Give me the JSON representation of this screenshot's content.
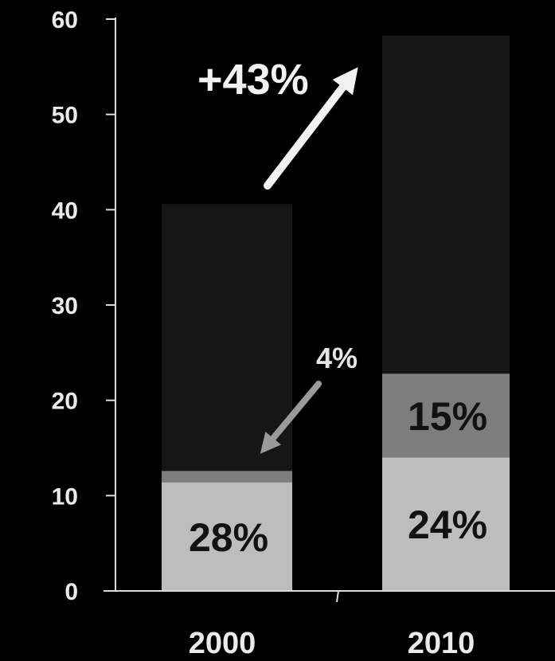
{
  "chart_data": {
    "type": "bar",
    "stacked": true,
    "categories": [
      "2000",
      "2010"
    ],
    "ylim": [
      0,
      60
    ],
    "yticks": [
      0,
      10,
      20,
      30,
      40,
      50,
      60
    ],
    "series": [
      {
        "values": [
          11.4,
          14.0
        ],
        "labels": [
          "28%",
          "24%"
        ],
        "color": "#bdbdbd"
      },
      {
        "values": [
          1.2,
          8.8
        ],
        "labels": [
          "",
          "15%"
        ],
        "color": "#7d7d7d"
      },
      {
        "values": [
          28.0,
          35.5
        ],
        "labels": [
          "",
          ""
        ],
        "color": "#161616"
      }
    ],
    "annotations": [
      {
        "text": "+43%",
        "kind": "growth-arrow",
        "color": "#f2f2f2"
      },
      {
        "text": "4%",
        "kind": "segment-pointer",
        "color": "#9a9a9a"
      }
    ],
    "title": "",
    "xlabel": "",
    "ylabel": "",
    "grid": false,
    "background": "#000000"
  }
}
